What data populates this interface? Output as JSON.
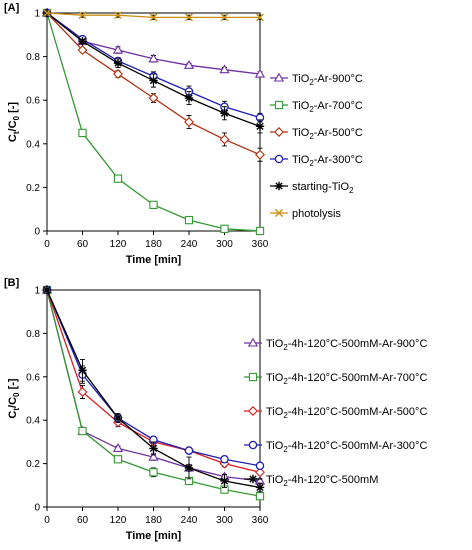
{
  "chart_data": [
    {
      "type": "line",
      "panel_label": "[A]",
      "xlabel": "Time [min]",
      "ylabel": "Ct/C0 [-]",
      "x": [
        0,
        60,
        120,
        180,
        240,
        300,
        360
      ],
      "xticks": [
        "0",
        "60",
        "120",
        "180",
        "240",
        "300",
        "360"
      ],
      "yticks": [
        "0",
        "0.2",
        "0.4",
        "0.6",
        "0.8",
        "1"
      ],
      "xlim": [
        0,
        360
      ],
      "ylim": [
        0,
        1
      ],
      "grid": false,
      "legend_position": "right",
      "series": [
        {
          "name": "TiO2-Ar-900°C",
          "marker": "triangle",
          "color": "#7030a0",
          "values": [
            1,
            0.87,
            0.83,
            0.79,
            0.76,
            0.74,
            0.72
          ],
          "errors": [
            0,
            0.01,
            0.015,
            0.015,
            0.01,
            0.01,
            0.01
          ]
        },
        {
          "name": "TiO2-Ar-700°C",
          "marker": "square",
          "color": "#339933",
          "values": [
            1,
            0.45,
            0.24,
            0.12,
            0.05,
            0.01,
            0.0
          ],
          "errors": [
            0,
            0.015,
            0.01,
            0.01,
            0.01,
            0.005,
            0.005
          ]
        },
        {
          "name": "TiO2-Ar-500°C",
          "marker": "diamond",
          "color": "#b03010",
          "values": [
            1,
            0.83,
            0.72,
            0.61,
            0.5,
            0.42,
            0.35
          ],
          "errors": [
            0,
            0.01,
            0.015,
            0.02,
            0.03,
            0.03,
            0.03
          ]
        },
        {
          "name": "TiO2-Ar-300°C",
          "marker": "circle",
          "color": "#1f1fb4",
          "values": [
            1,
            0.88,
            0.78,
            0.71,
            0.64,
            0.57,
            0.52
          ],
          "errors": [
            0,
            0.01,
            0.015,
            0.02,
            0.025,
            0.025,
            0.02
          ]
        },
        {
          "name": "starting-TiO2",
          "marker": "star",
          "color": "#000000",
          "values": [
            1,
            0.87,
            0.77,
            0.69,
            0.61,
            0.54,
            0.48
          ],
          "errors": [
            0,
            0.01,
            0.02,
            0.03,
            0.03,
            0.03,
            0.03
          ]
        },
        {
          "name": "photolysis",
          "marker": "x",
          "color": "#c89010",
          "values": [
            1,
            0.99,
            0.99,
            0.98,
            0.98,
            0.98,
            0.98
          ],
          "errors": [
            0,
            0.01,
            0.01,
            0.01,
            0.01,
            0.01,
            0.01
          ]
        }
      ]
    },
    {
      "type": "line",
      "panel_label": "[B]",
      "xlabel": "Time [min]",
      "ylabel": "Ct/C0 [-]",
      "x": [
        0,
        60,
        120,
        180,
        240,
        300,
        360
      ],
      "xticks": [
        "0",
        "60",
        "120",
        "180",
        "240",
        "300",
        "360"
      ],
      "yticks": [
        "0",
        "0.2",
        "0.4",
        "0.6",
        "0.8",
        "1"
      ],
      "xlim": [
        0,
        360
      ],
      "ylim": [
        0,
        1
      ],
      "grid": false,
      "legend_position": "right",
      "series": [
        {
          "name": "TiO2-4h-120°C-500mM-Ar-900°C",
          "marker": "triangle",
          "color": "#7030a0",
          "values": [
            1,
            0.35,
            0.27,
            0.23,
            0.18,
            0.14,
            0.12
          ],
          "errors": [
            0,
            0.01,
            0.01,
            0.015,
            0.015,
            0.01,
            0.01
          ]
        },
        {
          "name": "TiO2-4h-120°C-500mM-Ar-700°C",
          "marker": "square",
          "color": "#339933",
          "values": [
            1,
            0.35,
            0.22,
            0.16,
            0.12,
            0.08,
            0.05
          ],
          "errors": [
            0,
            0.015,
            0.015,
            0.02,
            0.015,
            0.015,
            0.015
          ]
        },
        {
          "name": "TiO2-4h-120°C-500mM-Ar-500°C",
          "marker": "diamond",
          "color": "#d62020",
          "values": [
            1,
            0.53,
            0.39,
            0.3,
            0.26,
            0.2,
            0.16
          ],
          "errors": [
            0,
            0.03,
            0.02,
            0.015,
            0.015,
            0.015,
            0.01
          ]
        },
        {
          "name": "TiO2-4h-120°C-500mM-Ar-300°C",
          "marker": "circle",
          "color": "#1f1fb4",
          "values": [
            1,
            0.61,
            0.41,
            0.31,
            0.26,
            0.22,
            0.19
          ],
          "errors": [
            0,
            0.04,
            0.02,
            0.015,
            0.015,
            0.015,
            0.01
          ]
        },
        {
          "name": "TiO2-4h-120°C-500mM",
          "marker": "star",
          "color": "#000000",
          "values": [
            1,
            0.63,
            0.41,
            0.27,
            0.18,
            0.12,
            0.09
          ],
          "errors": [
            0,
            0.05,
            0.02,
            0.03,
            0.05,
            0.03,
            0.02
          ]
        }
      ]
    }
  ]
}
